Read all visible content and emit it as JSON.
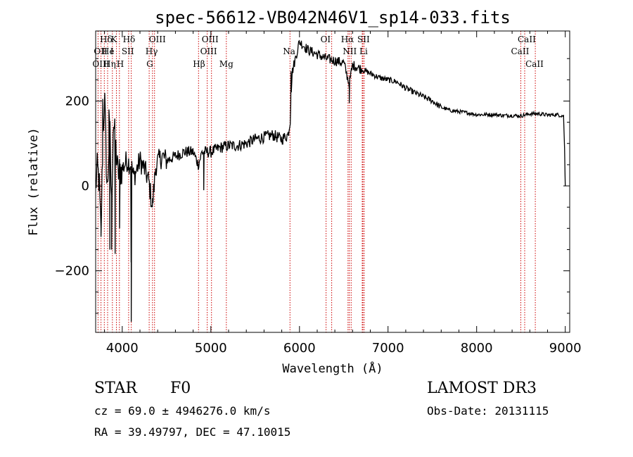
{
  "chart_data": {
    "type": "line",
    "title": "spec-56612-VB042N46V1_sp14-033.fits",
    "xlabel": "Wavelength (Å)",
    "ylabel": "Flux (relative)",
    "xlim": [
      3700,
      9050
    ],
    "ylim": [
      -345,
      365
    ],
    "xticks": [
      4000,
      5000,
      6000,
      7000,
      8000,
      9000
    ],
    "xtick_labels": [
      "4000",
      "5000",
      "6000",
      "7000",
      "8000",
      "9000"
    ],
    "yticks": [
      -200,
      0,
      200
    ],
    "ytick_labels": [
      "−200",
      "0",
      "200"
    ],
    "series": [
      {
        "name": "flux",
        "anchors": [
          [
            3700,
            0
          ],
          [
            3720,
            40
          ],
          [
            3740,
            10
          ],
          [
            3760,
            -120
          ],
          [
            3780,
            100
          ],
          [
            3800,
            210
          ],
          [
            3830,
            -20
          ],
          [
            3860,
            140
          ],
          [
            3880,
            -50
          ],
          [
            3900,
            160
          ],
          [
            3950,
            30
          ],
          [
            4000,
            40
          ],
          [
            4050,
            60
          ],
          [
            4100,
            50
          ],
          [
            4130,
            20
          ],
          [
            4200,
            60
          ],
          [
            4250,
            40
          ],
          [
            4300,
            10
          ],
          [
            4340,
            -50
          ],
          [
            4380,
            50
          ],
          [
            4450,
            70
          ],
          [
            4500,
            60
          ],
          [
            4600,
            70
          ],
          [
            4700,
            80
          ],
          [
            4800,
            80
          ],
          [
            4860,
            50
          ],
          [
            4900,
            80
          ],
          [
            5000,
            80
          ],
          [
            5100,
            90
          ],
          [
            5200,
            95
          ],
          [
            5300,
            95
          ],
          [
            5400,
            100
          ],
          [
            5500,
            110
          ],
          [
            5600,
            115
          ],
          [
            5700,
            120
          ],
          [
            5800,
            110
          ],
          [
            5870,
            120
          ],
          [
            5895,
            150
          ],
          [
            5905,
            220
          ],
          [
            5920,
            270
          ],
          [
            6000,
            340
          ],
          [
            6100,
            320
          ],
          [
            6200,
            310
          ],
          [
            6300,
            300
          ],
          [
            6400,
            295
          ],
          [
            6500,
            290
          ],
          [
            6562,
            240
          ],
          [
            6600,
            285
          ],
          [
            6700,
            275
          ],
          [
            6800,
            265
          ],
          [
            6900,
            255
          ],
          [
            7000,
            250
          ],
          [
            7100,
            245
          ],
          [
            7200,
            230
          ],
          [
            7300,
            220
          ],
          [
            7400,
            210
          ],
          [
            7500,
            200
          ],
          [
            7600,
            185
          ],
          [
            7700,
            178
          ],
          [
            7800,
            175
          ],
          [
            7900,
            172
          ],
          [
            8000,
            168
          ],
          [
            8100,
            168
          ],
          [
            8200,
            168
          ],
          [
            8300,
            166
          ],
          [
            8400,
            166
          ],
          [
            8500,
            165
          ],
          [
            8600,
            170
          ],
          [
            8700,
            170
          ],
          [
            8800,
            167
          ],
          [
            8900,
            168
          ],
          [
            8980,
            165
          ],
          [
            8990,
            110
          ],
          [
            9000,
            0
          ]
        ],
        "deep_features": [
          [
            3760,
            -120
          ],
          [
            3780,
            205
          ],
          [
            3850,
            180
          ],
          [
            3860,
            -150
          ],
          [
            3880,
            -150
          ],
          [
            3920,
            -160
          ],
          [
            3970,
            -100
          ],
          [
            4100,
            -180
          ],
          [
            4102,
            -320
          ],
          [
            4340,
            -50
          ],
          [
            4920,
            -10
          ],
          [
            5905,
            270
          ],
          [
            6562,
            195
          ]
        ]
      }
    ],
    "spectral_lines": [
      {
        "label": "Hδ",
        "wave": 3780,
        "row": 0,
        "dx": -4
      },
      {
        "label": "K",
        "wave": 3934,
        "row": 0,
        "dx": -8
      },
      {
        "label": "Hδ",
        "wave": 4102,
        "row": 0,
        "dx": -12
      },
      {
        "label": "OIII",
        "wave": 4364,
        "row": 0,
        "dx": -8
      },
      {
        "label": "OIII",
        "wave": 5007,
        "row": 0,
        "dx": -14
      },
      {
        "label": "OI",
        "wave": 6300,
        "row": 0,
        "dx": -8
      },
      {
        "label": "Hα",
        "wave": 6563,
        "row": 0,
        "dx": -12
      },
      {
        "label": "SII",
        "wave": 6716,
        "row": 0,
        "dx": -8
      },
      {
        "label": "CaII",
        "wave": 8542,
        "row": 0,
        "dx": -10
      },
      {
        "label": "OII",
        "wave": 3727,
        "row": 1,
        "dx": -6
      },
      {
        "label": "He",
        "wave": 3819,
        "row": 1,
        "dx": -6
      },
      {
        "label": "I",
        "wave": 3889,
        "row": 1,
        "dx": -3
      },
      {
        "label": "SII",
        "wave": 4072,
        "row": 1,
        "dx": -10
      },
      {
        "label": "Hγ",
        "wave": 4341,
        "row": 1,
        "dx": -10
      },
      {
        "label": "OIII",
        "wave": 4959,
        "row": 1,
        "dx": -10
      },
      {
        "label": "Na",
        "wave": 5893,
        "row": 1,
        "dx": -10
      },
      {
        "label": "NII",
        "wave": 6584,
        "row": 1,
        "dx": -12
      },
      {
        "label": "Li",
        "wave": 6708,
        "row": 1,
        "dx": -4
      },
      {
        "label": "CaII",
        "wave": 8498,
        "row": 1,
        "dx": -14
      },
      {
        "label": "OIII",
        "wave": 3727,
        "row": 2,
        "dx": -8
      },
      {
        "label": "Hη",
        "wave": 3835,
        "row": 2,
        "dx": -6
      },
      {
        "label": "H",
        "wave": 3968,
        "row": 2,
        "dx": -4
      },
      {
        "label": "G",
        "wave": 4304,
        "row": 2,
        "dx": -4
      },
      {
        "label": "Hβ",
        "wave": 4861,
        "row": 2,
        "dx": -8
      },
      {
        "label": "Mg",
        "wave": 5175,
        "row": 2,
        "dx": -10
      },
      {
        "label": "CaII",
        "wave": 8662,
        "row": 2,
        "dx": -14
      }
    ],
    "line_marker_waves": [
      3727,
      3760,
      3798,
      3835,
      3889,
      3934,
      3968,
      4072,
      4102,
      4304,
      4341,
      4364,
      4861,
      4959,
      5007,
      5175,
      5893,
      6300,
      6364,
      6548,
      6563,
      6584,
      6708,
      6716,
      6731,
      8498,
      8542,
      8662
    ],
    "line_color": "#cc0000",
    "trace_color": "#000000"
  },
  "info": {
    "class": "STAR",
    "subclass": "F0",
    "survey": "LAMOST DR3",
    "cz": "cz = 69.0 ± 4946276.0 km/s",
    "obs_date": "Obs-Date: 20131115",
    "coords": "RA =  39.49797, DEC =  47.10015"
  }
}
